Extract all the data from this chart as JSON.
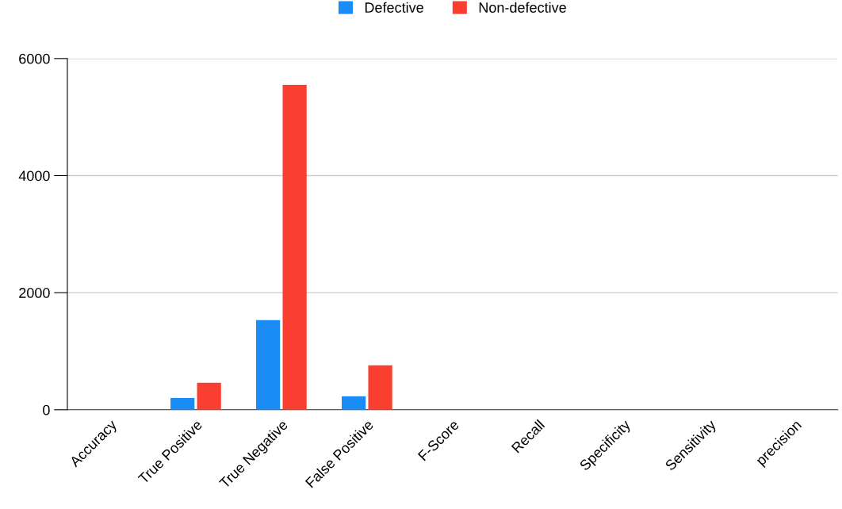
{
  "chart_data": {
    "type": "bar",
    "categories": [
      "Accuracy",
      "True Positive",
      "True Negative",
      "False Positive",
      "F-Score",
      "Recall",
      "Specificity",
      "Sensitivity",
      "precision"
    ],
    "series": [
      {
        "name": "Defective",
        "color": "#1a8cf5",
        "values": [
          0,
          200,
          1530,
          230,
          0,
          0,
          0,
          0,
          0
        ]
      },
      {
        "name": "Non-defective",
        "color": "#fa3f30",
        "values": [
          0,
          460,
          5550,
          760,
          0,
          0,
          0,
          0,
          0
        ]
      }
    ],
    "ylim": [
      0,
      6000
    ],
    "yticks": [
      0,
      2000,
      4000,
      6000
    ],
    "grid": "y",
    "legend": "top"
  }
}
